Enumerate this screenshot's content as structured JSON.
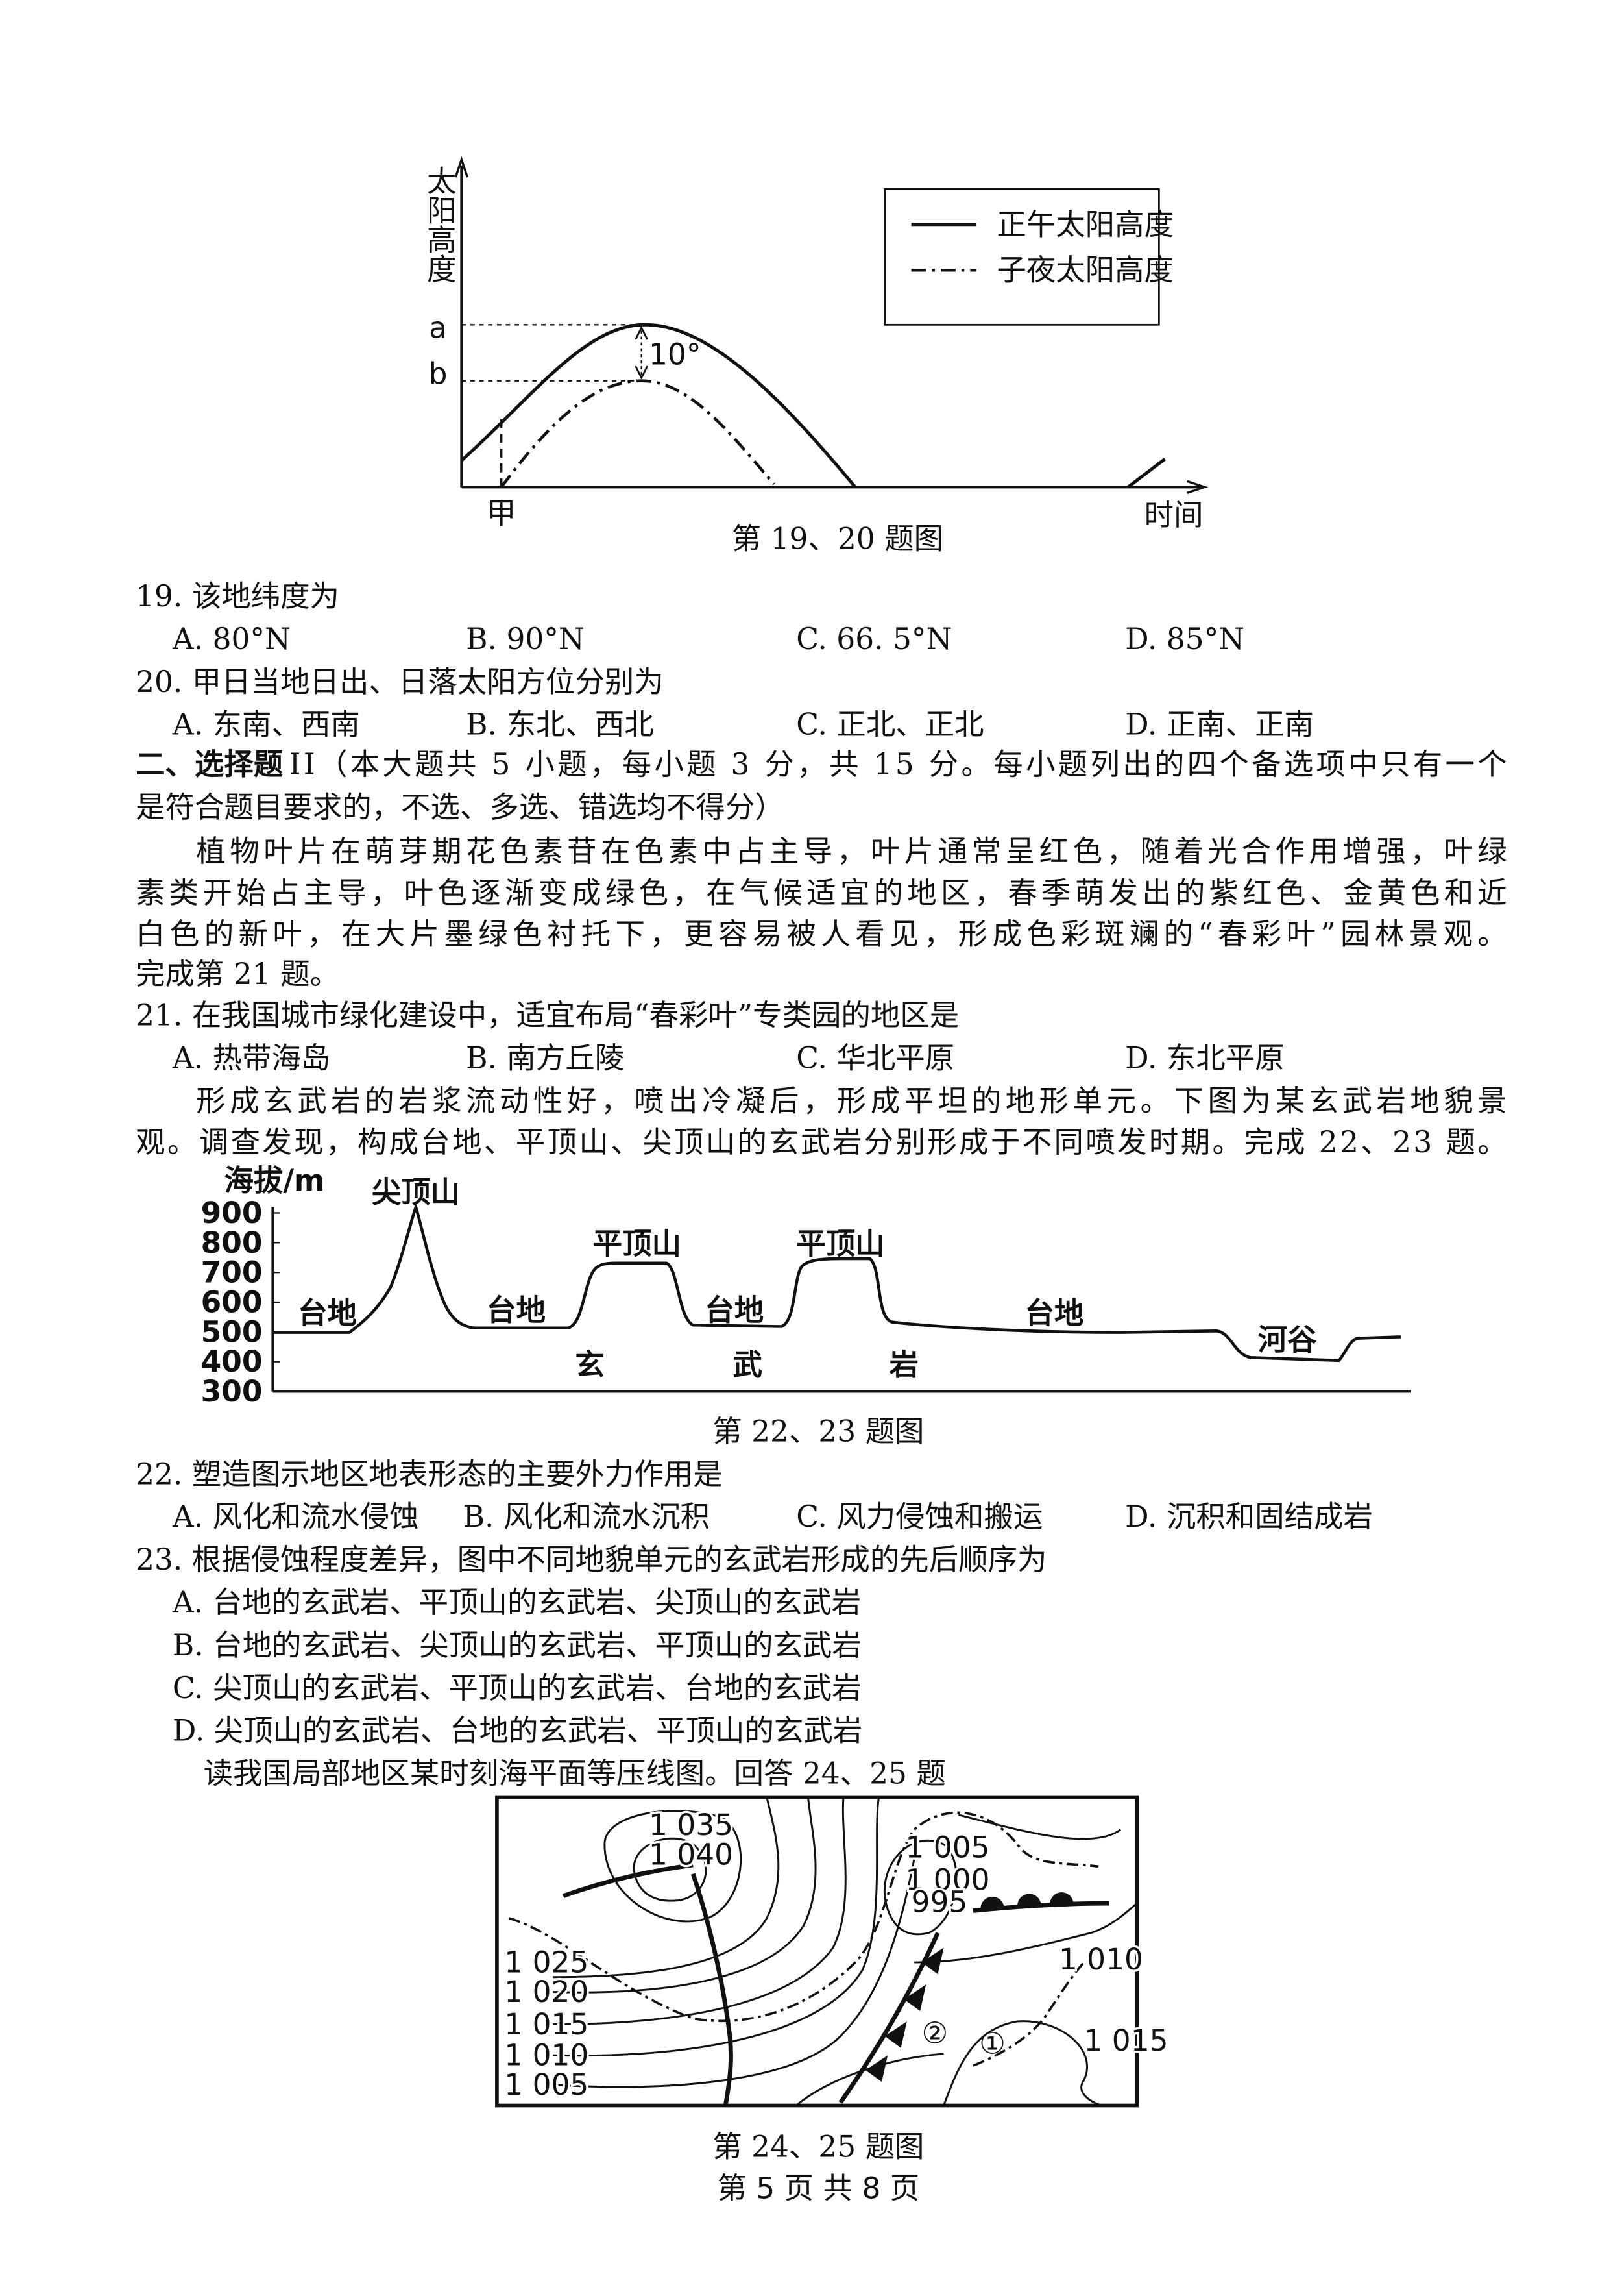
{
  "figure_19_20": {
    "y_axis_label": "太阳高度",
    "label_a": "a",
    "label_b": "b",
    "angle_label": "10°",
    "day_label": "甲",
    "x_axis_label": "时间",
    "legend": [
      "正午太阳高度",
      "子夜太阳高度"
    ],
    "caption": "第 19、20 题图"
  },
  "questions_19_20": [
    {
      "stem": "19. 该地纬度为",
      "options": [
        "A. 80°N",
        "B. 90°N",
        "C. 66. 5°N",
        "D. 85°N"
      ]
    },
    {
      "stem": "20. 甲日当地日出、日落太阳方位分别为",
      "options": [
        "A. 东南、西南",
        "B. 东北、西北",
        "C. 正北、正北",
        "D. 正南、正南"
      ]
    }
  ],
  "section": {
    "heading": "二、选择题",
    "line1": "II（本大题共 5 小题，每小题 3 分，共 15 分。每小题列出的四个备选项中只有一个",
    "line2": "是符合题目要求的，不选、多选、错选均不得分）"
  },
  "passage_21": [
    "植物叶片在萌芽期花色素苷在色素中占主导，叶片通常呈红色，随着光合作用增强，叶绿",
    "素类开始占主导，叶色逐渐变成绿色，在气候适宜的地区，春季萌发出的紫红色、金黄色和近",
    "白色的新叶，在大片墨绿色衬托下，更容易被人看见，形成色彩斑斓的“春彩叶”园林景观。",
    "完成第 21 题。"
  ],
  "question_21": {
    "stem": "21. 在我国城市绿化建设中，适宜布局“春彩叶”专类园的地区是",
    "options": [
      "A. 热带海岛",
      "B. 南方丘陵",
      "C. 华北平原",
      "D. 东北平原"
    ]
  },
  "passage_22_23": [
    "形成玄武岩的岩浆流动性好，喷出冷凝后，形成平坦的地形单元。下图为某玄武岩地貌景",
    "观。调查发现，构成台地、平顶山、尖顶山的玄武岩分别形成于不同喷发时期。完成 22、23 题。"
  ],
  "figure_22_23": {
    "y_axis_label": "海拔/m",
    "yticks": [
      300,
      400,
      500,
      600,
      700,
      800,
      900
    ],
    "ylim": [
      300,
      900
    ],
    "peak_label": "尖顶山",
    "mesa_labels": [
      "平顶山",
      "平顶山"
    ],
    "plateau_labels": [
      "台地",
      "台地",
      "台地",
      "台地"
    ],
    "valley_label": "河谷",
    "rock_labels": [
      "玄",
      "武",
      "岩"
    ],
    "caption": "第 22、23 题图"
  },
  "questions_22_23": [
    {
      "stem": "22. 塑造图示地区地表形态的主要外力作用是",
      "options": [
        "A. 风化和流水侵蚀",
        "B. 风化和流水沉积",
        "C. 风力侵蚀和搬运",
        "D. 沉积和固结成岩"
      ]
    },
    {
      "stem": "23. 根据侵蚀程度差异，图中不同地貌单元的玄武岩形成的先后顺序为",
      "options": [
        "A. 台地的玄武岩、平顶山的玄武岩、尖顶山的玄武岩",
        "B. 台地的玄武岩、尖顶山的玄武岩、平顶山的玄武岩",
        "C. 尖顶山的玄武岩、平顶山的玄武岩、台地的玄武岩",
        "D. 尖顶山的玄武岩、台地的玄武岩、平顶山的玄武岩"
      ]
    }
  ],
  "passage_24_25": "读我国局部地区某时刻海平面等压线图。回答 24、25 题",
  "figure_24_25": {
    "isobar_labels": [
      "1 035",
      "1 040",
      "1 025",
      "1 020",
      "1 015",
      "1 010",
      "1 005",
      "1 005",
      "1 000",
      "995",
      "1 010",
      "1 015"
    ],
    "point_labels": [
      "②",
      "①"
    ],
    "caption": "第 24、25 题图"
  },
  "footer": "第 5 页 共 8 页"
}
